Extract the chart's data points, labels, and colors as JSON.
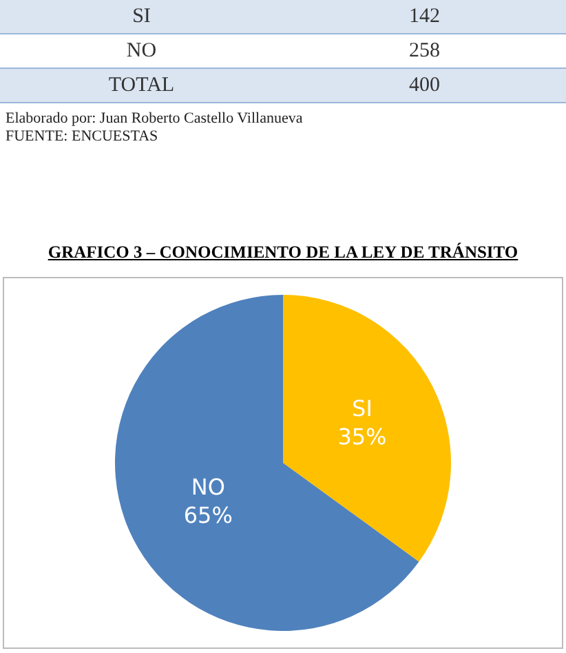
{
  "chart_data": {
    "type": "pie",
    "title": "GRAFICO 3 – CONOCIMIENTO DE LA LEY DE TRÁNSITO",
    "categories": [
      "SI",
      "NO"
    ],
    "values": [
      35,
      65
    ],
    "value_labels": [
      "35%",
      "65%"
    ],
    "colors": [
      "#ffc000",
      "#4f81bd"
    ],
    "annotations": [
      "SI",
      "142",
      "NO",
      "258",
      "TOTAL",
      "400",
      "Elaborado por: Juan Roberto Castello Villanueva",
      "FUENTE: ENCUESTAS"
    ]
  }
}
